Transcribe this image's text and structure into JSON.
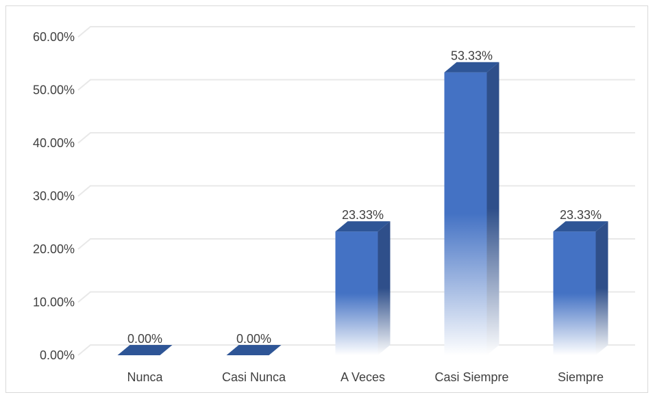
{
  "chart_data": {
    "type": "bar",
    "categories": [
      "Nunca",
      "Casi Nunca",
      "A Veces",
      "Casi Siempre",
      "Siempre"
    ],
    "values": [
      0.0,
      0.0,
      23.33,
      53.33,
      23.33
    ],
    "data_labels": [
      "0.00%",
      "0.00%",
      "23.33%",
      "53.33%",
      "23.33%"
    ],
    "y_ticks": [
      "0.00%",
      "10.00%",
      "20.00%",
      "30.00%",
      "40.00%",
      "50.00%",
      "60.00%"
    ],
    "ylim": [
      0,
      60
    ],
    "grid": true,
    "legend": "none",
    "style": "3d-column-gradient",
    "colors": {
      "bar_front": "#4472c4",
      "bar_side": "#2f4f8a",
      "bar_top": "#2e5596",
      "grid": "#e8e8e8",
      "text": "#404040"
    }
  }
}
